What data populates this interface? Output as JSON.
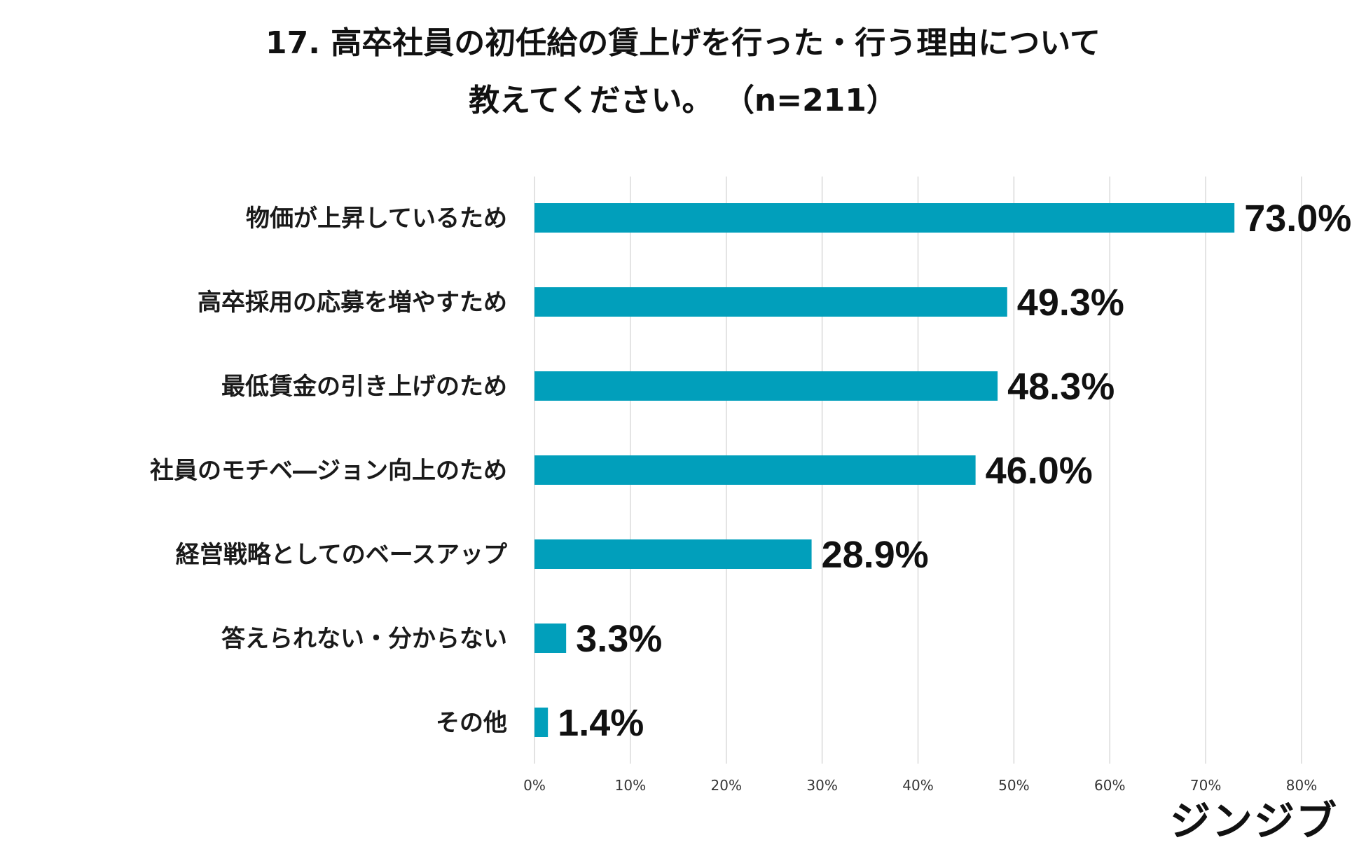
{
  "header": {
    "line1": "17.  高卒社員の初任給の賃上げを行った・行う理由について",
    "line2": "教えてください。  （n=211）"
  },
  "logo": {
    "text": "ジンジブ"
  },
  "chart_data": {
    "type": "bar",
    "orientation": "horizontal",
    "title": "17.  高卒社員の初任給の賃上げを行った・行う理由について 教えてください。  （n=211）",
    "categories": [
      "物価が上昇しているため",
      "高卒採用の応募を増やすため",
      "最低賃金の引き上げのため",
      "社員のモチベ―ジョン向上のため",
      "経営戦略としてのベースアップ",
      "答えられない・分からない",
      "その他"
    ],
    "values": [
      73.0,
      49.3,
      48.3,
      46.0,
      28.9,
      3.3,
      1.4
    ],
    "value_labels": [
      "73.0%",
      "49.3%",
      "48.3%",
      "46.0%",
      "28.9%",
      "3.3%",
      "1.4%"
    ],
    "xlim": [
      0,
      80
    ],
    "xticks": [
      0,
      10,
      20,
      30,
      40,
      50,
      60,
      70,
      80
    ],
    "xtick_labels": [
      "0%",
      "10%",
      "20%",
      "30%",
      "40%",
      "50%",
      "60%",
      "70%",
      "80%"
    ],
    "grid": true,
    "bar_color": "#019fbb",
    "grid_color": "#d9d9d9"
  }
}
